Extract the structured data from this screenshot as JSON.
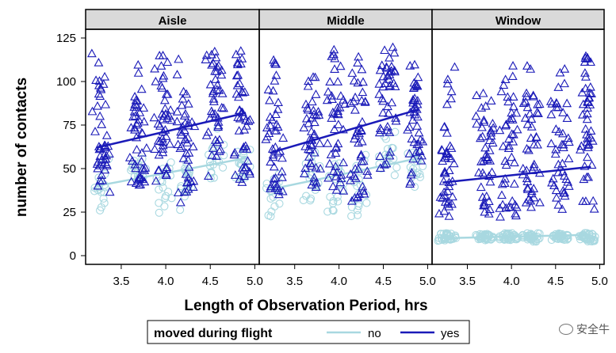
{
  "chart_data": {
    "type": "scatter",
    "panels": [
      "Aisle",
      "Middle",
      "Window"
    ],
    "xlabel": "Length of Observation Period, hrs",
    "ylabel": "number of contacts",
    "xlim": [
      3.1,
      5.05
    ],
    "ylim": [
      -5,
      130
    ],
    "xticks": [
      3.5,
      4.0,
      4.5,
      5.0
    ],
    "xtick_labels": [
      "3.5",
      "4.0",
      "4.5",
      "5.0"
    ],
    "yticks": [
      0,
      25,
      50,
      75,
      100,
      125
    ],
    "ytick_labels": [
      "0",
      "25",
      "50",
      "75",
      "100",
      "125"
    ],
    "flight_x": [
      3.22,
      3.28,
      3.32,
      3.65,
      3.7,
      3.74,
      3.92,
      3.97,
      4.02,
      4.18,
      4.22,
      4.27,
      4.5,
      4.55,
      4.6,
      4.82,
      4.86,
      4.9
    ],
    "legend": {
      "title": "moved during flight",
      "placement": "bottom",
      "items": [
        {
          "label": "no",
          "color": "#a8d8e0",
          "marker": "circle"
        },
        {
          "label": "yes",
          "color": "#1a1ab8",
          "marker": "triangle"
        }
      ]
    },
    "series": [
      {
        "name": "yes",
        "color": "#1a1ab8",
        "marker": "triangle",
        "panels": [
          {
            "panel": "Aisle",
            "ranges": [
              [
                38,
                118
              ],
              [
                38,
                116
              ],
              [
                35,
                70
              ],
              [
                40,
                90
              ],
              [
                42,
                110
              ],
              [
                40,
                85
              ],
              [
                38,
                115
              ],
              [
                35,
                118
              ],
              [
                38,
                95
              ],
              [
                30,
                118
              ],
              [
                35,
                100
              ],
              [
                28,
                80
              ],
              [
                45,
                118
              ],
              [
                48,
                115
              ],
              [
                55,
                110
              ],
              [
                40,
                120
              ],
              [
                42,
                118
              ],
              [
                45,
                100
              ]
            ],
            "trend": [
              [
                3.22,
                62
              ],
              [
                4.9,
                82
              ]
            ]
          },
          {
            "panel": "Middle",
            "ranges": [
              [
                38,
                100
              ],
              [
                35,
                118
              ],
              [
                35,
                90
              ],
              [
                38,
                90
              ],
              [
                40,
                105
              ],
              [
                38,
                85
              ],
              [
                38,
                120
              ],
              [
                35,
                125
              ],
              [
                35,
                95
              ],
              [
                30,
                120
              ],
              [
                35,
                112
              ],
              [
                30,
                90
              ],
              [
                45,
                110
              ],
              [
                48,
                118
              ],
              [
                55,
                120
              ],
              [
                40,
                110
              ],
              [
                42,
                118
              ],
              [
                45,
                100
              ]
            ],
            "trend": [
              [
                3.22,
                59
              ],
              [
                4.9,
                84
              ]
            ]
          },
          {
            "panel": "Window",
            "ranges": [
              [
                24,
                80
              ],
              [
                22,
                70
              ],
              [
                20,
                110
              ],
              [
                22,
                95
              ],
              [
                25,
                105
              ],
              [
                20,
                90
              ],
              [
                22,
                110
              ],
              [
                20,
                118
              ],
              [
                22,
                85
              ],
              [
                22,
                95
              ],
              [
                25,
                110
              ],
              [
                22,
                90
              ],
              [
                24,
                90
              ],
              [
                26,
                110
              ],
              [
                28,
                100
              ],
              [
                26,
                100
              ],
              [
                28,
                115
              ],
              [
                25,
                95
              ]
            ],
            "trend": [
              [
                3.22,
                42
              ],
              [
                4.9,
                51
              ]
            ]
          }
        ]
      },
      {
        "name": "no",
        "color": "#a8d8e0",
        "marker": "circle",
        "panels": [
          {
            "panel": "Aisle",
            "ranges": [
              [
                22,
                45
              ],
              [
                25,
                50
              ],
              [
                28,
                58
              ],
              [
                35,
                55
              ],
              [
                36,
                58
              ],
              [
                38,
                60
              ],
              [
                24,
                55
              ],
              [
                28,
                50
              ],
              [
                30,
                65
              ],
              [
                26,
                60
              ],
              [
                30,
                58
              ],
              [
                32,
                55
              ],
              [
                42,
                62
              ],
              [
                45,
                70
              ],
              [
                48,
                75
              ],
              [
                40,
                58
              ],
              [
                42,
                65
              ],
              [
                44,
                62
              ]
            ],
            "trend": [
              [
                3.22,
                40
              ],
              [
                4.9,
                56
              ]
            ]
          },
          {
            "panel": "Middle",
            "ranges": [
              [
                22,
                45
              ],
              [
                25,
                48
              ],
              [
                28,
                50
              ],
              [
                30,
                55
              ],
              [
                32,
                58
              ],
              [
                34,
                60
              ],
              [
                20,
                50
              ],
              [
                24,
                55
              ],
              [
                26,
                52
              ],
              [
                22,
                55
              ],
              [
                26,
                60
              ],
              [
                28,
                58
              ],
              [
                38,
                62
              ],
              [
                42,
                70
              ],
              [
                45,
                72
              ],
              [
                38,
                60
              ],
              [
                42,
                65
              ],
              [
                44,
                62
              ]
            ],
            "trend": [
              [
                3.22,
                38
              ],
              [
                4.9,
                56
              ]
            ]
          },
          {
            "panel": "Window",
            "ranges": [
              [
                8,
                13
              ],
              [
                9,
                13
              ],
              [
                9,
                13
              ],
              [
                8,
                13
              ],
              [
                9,
                12
              ],
              [
                9,
                13
              ],
              [
                9,
                13
              ],
              [
                8,
                13
              ],
              [
                9,
                12
              ],
              [
                9,
                13
              ],
              [
                9,
                13
              ],
              [
                8,
                13
              ],
              [
                9,
                13
              ],
              [
                9,
                13
              ],
              [
                9,
                12
              ],
              [
                9,
                13
              ],
              [
                9,
                13
              ],
              [
                8,
                13
              ]
            ],
            "trend": [
              [
                3.22,
                10
              ],
              [
                4.9,
                12
              ]
            ]
          }
        ]
      }
    ],
    "strip_fill": "#d9d9d9",
    "frame_color": "#000000"
  },
  "watermark": {
    "text": "安全牛"
  }
}
